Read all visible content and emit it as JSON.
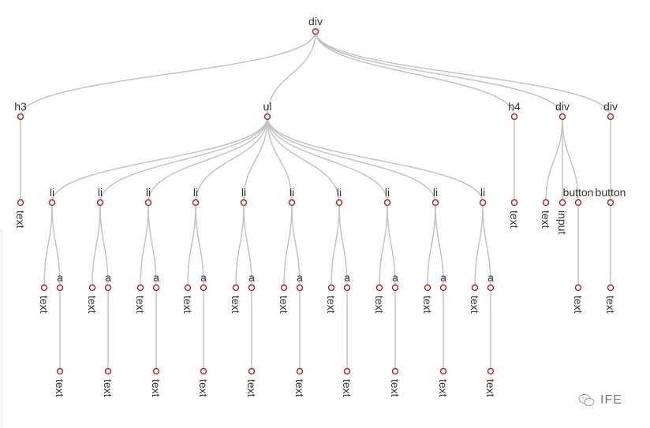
{
  "tree": {
    "name": "div",
    "children": [
      {
        "name": "h3",
        "children": [
          {
            "name": "text"
          }
        ]
      },
      {
        "name": "ul",
        "children": [
          {
            "name": "li",
            "children": [
              {
                "name": "text"
              },
              {
                "name": "a",
                "children": [
                  {
                    "name": "text"
                  }
                ]
              }
            ]
          },
          {
            "name": "li",
            "children": [
              {
                "name": "text"
              },
              {
                "name": "a",
                "children": [
                  {
                    "name": "text"
                  }
                ]
              }
            ]
          },
          {
            "name": "li",
            "children": [
              {
                "name": "text"
              },
              {
                "name": "a",
                "children": [
                  {
                    "name": "text"
                  }
                ]
              }
            ]
          },
          {
            "name": "li",
            "children": [
              {
                "name": "text"
              },
              {
                "name": "a",
                "children": [
                  {
                    "name": "text"
                  }
                ]
              }
            ]
          },
          {
            "name": "li",
            "children": [
              {
                "name": "text"
              },
              {
                "name": "a",
                "children": [
                  {
                    "name": "text"
                  }
                ]
              }
            ]
          },
          {
            "name": "li",
            "children": [
              {
                "name": "text"
              },
              {
                "name": "a",
                "children": [
                  {
                    "name": "text"
                  }
                ]
              }
            ]
          },
          {
            "name": "li",
            "children": [
              {
                "name": "text"
              },
              {
                "name": "a",
                "children": [
                  {
                    "name": "text"
                  }
                ]
              }
            ]
          },
          {
            "name": "li",
            "children": [
              {
                "name": "text"
              },
              {
                "name": "a",
                "children": [
                  {
                    "name": "text"
                  }
                ]
              }
            ]
          },
          {
            "name": "li",
            "children": [
              {
                "name": "text"
              },
              {
                "name": "a",
                "children": [
                  {
                    "name": "text"
                  }
                ]
              }
            ]
          },
          {
            "name": "li",
            "children": [
              {
                "name": "text"
              },
              {
                "name": "a",
                "children": [
                  {
                    "name": "text"
                  }
                ]
              }
            ]
          }
        ]
      },
      {
        "name": "h4",
        "children": [
          {
            "name": "text"
          }
        ]
      },
      {
        "name": "div",
        "children": [
          {
            "name": "text"
          },
          {
            "name": "input"
          },
          {
            "name": "button",
            "children": [
              {
                "name": "text"
              }
            ]
          }
        ]
      },
      {
        "name": "div",
        "children": [
          {
            "name": "button",
            "children": [
              {
                "name": "text"
              }
            ]
          }
        ]
      }
    ]
  },
  "colors": {
    "link": "#c4c4c4",
    "node_stroke": "#b8262b",
    "label": "#333333"
  },
  "watermark": {
    "text": "IFE",
    "icon": "wechat-icon"
  }
}
